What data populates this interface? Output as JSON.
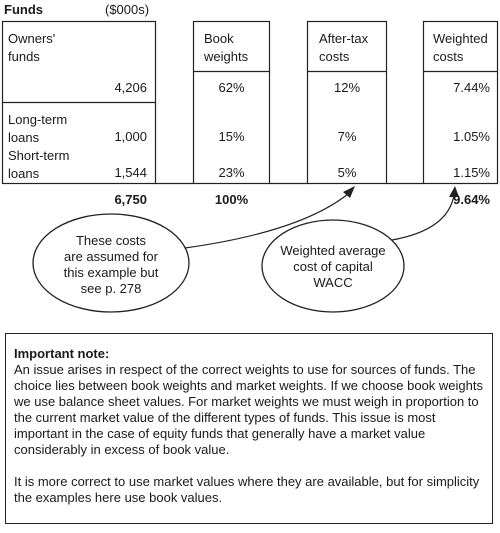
{
  "header": {
    "funds": "Funds",
    "units": "($000s)"
  },
  "columns": {
    "book_weights": "Book\nweights",
    "after_tax_costs": "After-tax\ncosts",
    "weighted_costs": "Weighted\ncosts"
  },
  "rows": [
    {
      "label": "Owners'\nfunds",
      "amount": "4,206",
      "book_weight": "62%",
      "after_tax_cost": "12%",
      "weighted_cost": "7.44%"
    },
    {
      "label": "Long-term\nloans",
      "amount": "1,000",
      "book_weight": "15%",
      "after_tax_cost": "7%",
      "weighted_cost": "1.05%"
    },
    {
      "label": "Short-term\nloans",
      "amount": "1,544",
      "book_weight": "23%",
      "after_tax_cost": "5%",
      "weighted_cost": "1.15%"
    }
  ],
  "totals": {
    "amount": "6,750",
    "book_weight": "100%",
    "weighted_cost": "9.64%"
  },
  "callouts": {
    "costs_assumed": "These costs\nare assumed for\nthis example but\nsee p. 278",
    "wacc": "Weighted average\ncost of capital\nWACC"
  },
  "note": {
    "heading": "Important note:",
    "paragraph1": "An issue arises in respect of the correct weights to use for sources of funds. The choice lies between book weights and market weights. If we choose book weights we use balance sheet values. For market weights we must weigh in proportion to the current market value of the different types of funds. This issue is most important in the case of equity funds that generally have a market value considerably in excess of book value.",
    "paragraph2": "It is more correct to use market values where they are available, but for simplicity the examples here use book values."
  }
}
